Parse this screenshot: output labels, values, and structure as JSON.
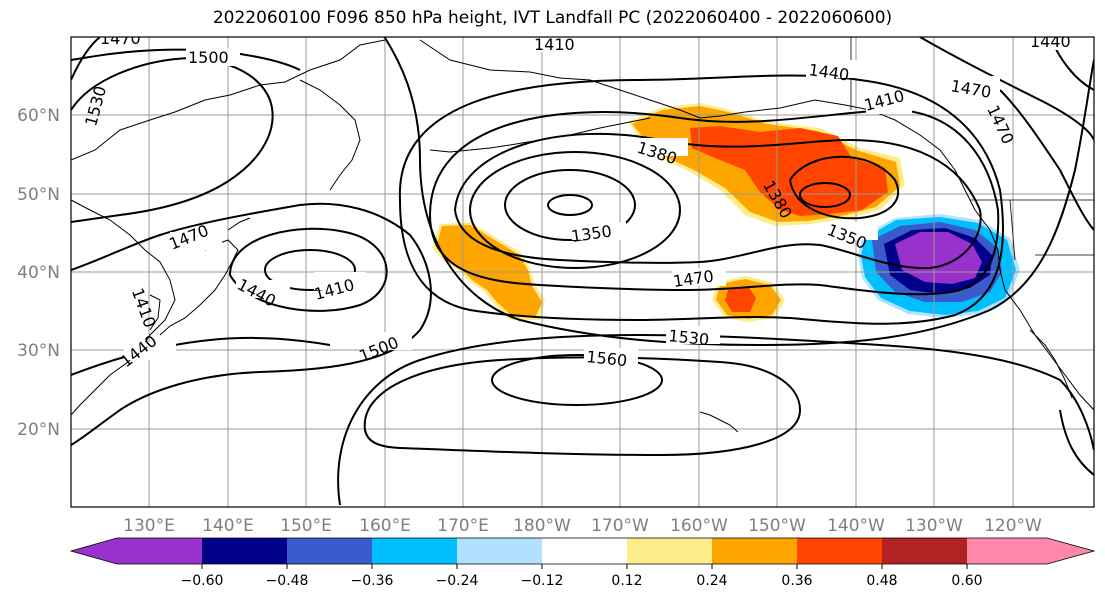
{
  "title": "2022060100 F096 850 hPa height, IVT Landfall PC (2022060400 - 2022060600)",
  "map": {
    "lat_labels": [
      "60°N",
      "50°N",
      "40°N",
      "30°N",
      "20°N"
    ],
    "lon_labels": [
      "130°E",
      "140°E",
      "150°E",
      "160°E",
      "170°E",
      "180°W",
      "170°W",
      "160°W",
      "150°W",
      "140°W",
      "130°W",
      "120°W"
    ],
    "contour_labels": [
      "1470",
      "1500",
      "1410",
      "1440",
      "1530",
      "1470",
      "1440",
      "1410",
      "1470",
      "1470",
      "1410",
      "1380",
      "1350",
      "1380",
      "1350",
      "1470",
      "1440",
      "1410",
      "1440",
      "1500",
      "1560",
      "1530",
      "1470",
      "1440"
    ]
  },
  "colorbar": {
    "colors": [
      "#9932cc",
      "#00008b",
      "#3a5bcc",
      "#00bfff",
      "#b0e2ff",
      "#ffffff",
      "#ffec8b",
      "#ffa500",
      "#ff4500",
      "#b22222",
      "#ff88aa"
    ],
    "tick_labels": [
      "−0.60",
      "−0.48",
      "−0.36",
      "−0.24",
      "−0.12",
      "0.12",
      "0.24",
      "0.36",
      "0.48",
      "0.60"
    ]
  }
}
